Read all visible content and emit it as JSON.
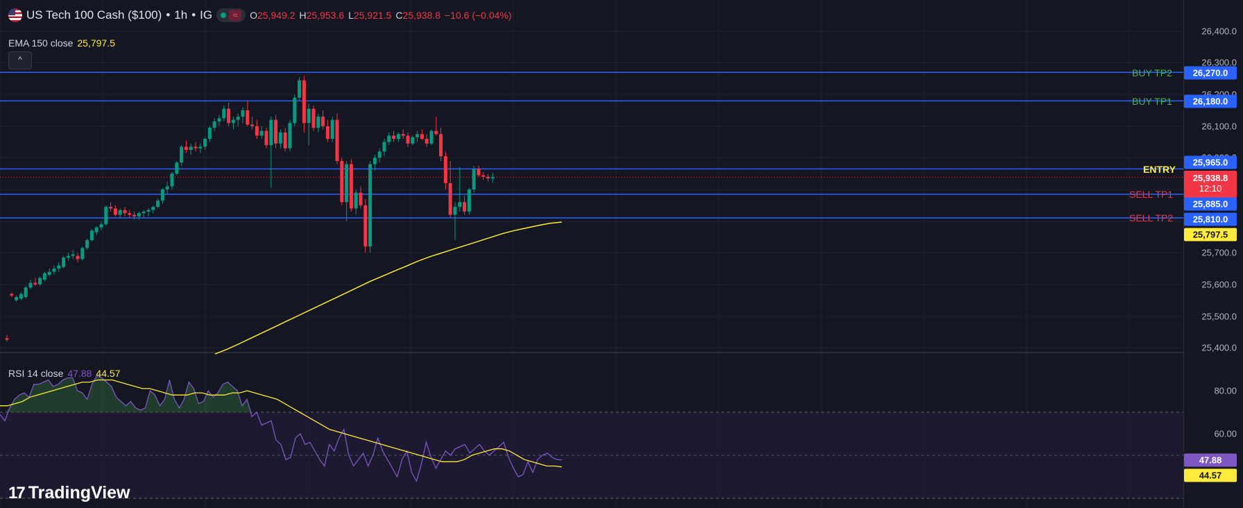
{
  "header": {
    "symbol": "US Tech 100 Cash ($100)",
    "separator1": "•",
    "interval": "1h",
    "separator2": "•",
    "broker": "IG",
    "wave_symbol": "≈",
    "o_label": "O",
    "o_value": "25,949.2",
    "h_label": "H",
    "h_value": "25,953.6",
    "l_label": "L",
    "l_value": "25,921.5",
    "c_label": "C",
    "c_value": "25,938.8",
    "change": "−10.6 (−0.04%)"
  },
  "ema_legend": {
    "label": "EMA 150 close",
    "value": "25,797.5"
  },
  "collapse_glyph": "^",
  "rsi_legend": {
    "label": "RSI 14 close",
    "value": "47.88",
    "ma_value": "44.57"
  },
  "price_axis": {
    "ticks": [
      "26,400.0",
      "26,300.0",
      "26,200.0",
      "26,100.0",
      "26,000.0",
      "25,700.0",
      "25,600.0",
      "25,500.0",
      "25,400.0"
    ]
  },
  "rsi_axis": {
    "ticks": [
      "80.00",
      "60.00"
    ]
  },
  "levels": [
    {
      "name": "BUY TP2",
      "price": "26,270.0",
      "value": 26270,
      "color": "#4caf50",
      "badge_color": "#2962ff"
    },
    {
      "name": "BUY TP1",
      "price": "26,180.0",
      "value": 26180,
      "color": "#4caf50",
      "badge_color": "#2962ff"
    },
    {
      "name": "ENTRY",
      "price": "25,965.0",
      "value": 25965,
      "color": "#ffeb3b",
      "badge_color": "#2962ff"
    },
    {
      "name": "SELL TP1",
      "price": "25,885.0",
      "value": 25885,
      "color": "#f23645",
      "badge_color": "#2962ff"
    },
    {
      "name": "SELL TP2",
      "price": "25,810.0",
      "value": 25810,
      "color": "#f23645",
      "badge_color": "#2962ff"
    }
  ],
  "current_price": {
    "price": "25,938.8",
    "countdown": "12:10",
    "color": "#f23645"
  },
  "ema_badge": {
    "value": "25,797.5",
    "color": "#ffeb3b"
  },
  "rsi_badges": {
    "rsi": "47.88",
    "rsi_color": "#7e57c2",
    "ma": "44.57",
    "ma_color": "#ffeb3b"
  },
  "brand": {
    "mark": "17",
    "name": "TradingView"
  },
  "colors": {
    "up": "#089981",
    "down": "#f23645",
    "ema": "#ffeb3b",
    "rsi": "#7e57c2",
    "level_line": "#2962ff"
  },
  "chart_data": {
    "type": "candlestick",
    "price_range": [
      25380,
      26450
    ],
    "candles": [
      [
        25430,
        25440,
        25420,
        25425
      ],
      [
        25570,
        25575,
        25560,
        25565
      ],
      [
        25550,
        25565,
        25545,
        25560
      ],
      [
        25555,
        25575,
        25550,
        25570
      ],
      [
        25560,
        25595,
        25555,
        25590
      ],
      [
        25590,
        25615,
        25585,
        25605
      ],
      [
        25605,
        25620,
        25595,
        25600
      ],
      [
        25600,
        25625,
        25595,
        25620
      ],
      [
        25615,
        25640,
        25610,
        25635
      ],
      [
        25630,
        25650,
        25625,
        25640
      ],
      [
        25640,
        25660,
        25630,
        25650
      ],
      [
        25650,
        25670,
        25640,
        25660
      ],
      [
        25655,
        25690,
        25650,
        25685
      ],
      [
        25685,
        25700,
        25675,
        25690
      ],
      [
        25690,
        25710,
        25680,
        25695
      ],
      [
        25690,
        25700,
        25670,
        25680
      ],
      [
        25680,
        25720,
        25675,
        25715
      ],
      [
        25715,
        25745,
        25710,
        25740
      ],
      [
        25740,
        25775,
        25735,
        25770
      ],
      [
        25765,
        25785,
        25755,
        25780
      ],
      [
        25780,
        25800,
        25770,
        25790
      ],
      [
        25790,
        25850,
        25785,
        25845
      ],
      [
        25845,
        25860,
        25830,
        25840
      ],
      [
        25840,
        25850,
        25815,
        25820
      ],
      [
        25820,
        25840,
        25810,
        25835
      ],
      [
        25835,
        25845,
        25815,
        25825
      ],
      [
        25825,
        25835,
        25810,
        25820
      ],
      [
        25820,
        25830,
        25805,
        25815
      ],
      [
        25815,
        25830,
        25805,
        25825
      ],
      [
        25825,
        25835,
        25810,
        25830
      ],
      [
        25830,
        25840,
        25815,
        25835
      ],
      [
        25835,
        25850,
        25825,
        25845
      ],
      [
        25845,
        25870,
        25840,
        25865
      ],
      [
        25865,
        25905,
        25855,
        25900
      ],
      [
        25900,
        25925,
        25885,
        25910
      ],
      [
        25910,
        25955,
        25900,
        25950
      ],
      [
        25950,
        25990,
        25945,
        25985
      ],
      [
        25985,
        26040,
        25975,
        26035
      ],
      [
        26035,
        26055,
        26015,
        26025
      ],
      [
        26025,
        26045,
        26010,
        26035
      ],
      [
        26035,
        26050,
        26020,
        26030
      ],
      [
        26030,
        26045,
        26015,
        26035
      ],
      [
        26035,
        26065,
        26025,
        26060
      ],
      [
        26060,
        26100,
        26050,
        26095
      ],
      [
        26095,
        26125,
        26085,
        26115
      ],
      [
        26115,
        26135,
        26100,
        26125
      ],
      [
        26125,
        26165,
        26115,
        26155
      ],
      [
        26155,
        26175,
        26100,
        26110
      ],
      [
        26110,
        26130,
        26090,
        26120
      ],
      [
        26120,
        26140,
        26100,
        26130
      ],
      [
        26130,
        26160,
        26110,
        26150
      ],
      [
        26150,
        26180,
        26100,
        26105
      ],
      [
        26105,
        26130,
        26090,
        26100
      ],
      [
        26100,
        26120,
        26060,
        26070
      ],
      [
        26070,
        26100,
        26060,
        26085
      ],
      [
        26085,
        26095,
        26030,
        26040
      ],
      [
        26040,
        26130,
        25905,
        26120
      ],
      [
        26120,
        26135,
        26030,
        26045
      ],
      [
        26045,
        26090,
        26030,
        26080
      ],
      [
        26080,
        26095,
        26020,
        26030
      ],
      [
        26030,
        26120,
        26020,
        26110
      ],
      [
        26110,
        26200,
        26100,
        26190
      ],
      [
        26190,
        26255,
        26180,
        26245
      ],
      [
        26245,
        26260,
        26080,
        26110
      ],
      [
        26110,
        26170,
        26040,
        26155
      ],
      [
        26155,
        26165,
        26085,
        26095
      ],
      [
        26095,
        26140,
        26080,
        26130
      ],
      [
        26130,
        26150,
        26090,
        26100
      ],
      [
        26100,
        26120,
        26050,
        26060
      ],
      [
        26060,
        26130,
        26050,
        26120
      ],
      [
        26120,
        26140,
        25980,
        25990
      ],
      [
        25990,
        26000,
        25850,
        25860
      ],
      [
        25860,
        25990,
        25800,
        25980
      ],
      [
        25980,
        25995,
        25830,
        25840
      ],
      [
        25840,
        25900,
        25820,
        25890
      ],
      [
        25890,
        25910,
        25840,
        25850
      ],
      [
        25850,
        25870,
        25700,
        25720
      ],
      [
        25720,
        25990,
        25700,
        25980
      ],
      [
        25980,
        26010,
        25960,
        26000
      ],
      [
        26000,
        26030,
        25985,
        26020
      ],
      [
        26020,
        26060,
        26005,
        26050
      ],
      [
        26050,
        26080,
        26040,
        26070
      ],
      [
        26070,
        26085,
        26050,
        26060
      ],
      [
        26060,
        26080,
        26050,
        26075
      ],
      [
        26075,
        26090,
        26060,
        26070
      ],
      [
        26070,
        26080,
        26035,
        26045
      ],
      [
        26045,
        26070,
        26040,
        26065
      ],
      [
        26065,
        26085,
        26050,
        26075
      ],
      [
        26075,
        26090,
        26055,
        26060
      ],
      [
        26060,
        26075,
        26035,
        26045
      ],
      [
        26045,
        26090,
        26040,
        26085
      ],
      [
        26085,
        26130,
        26070,
        26075
      ],
      [
        26075,
        26095,
        25990,
        26005
      ],
      [
        26005,
        26020,
        25900,
        25920
      ],
      [
        25920,
        25990,
        25810,
        25820
      ],
      [
        25820,
        25860,
        25740,
        25845
      ],
      [
        25845,
        25970,
        25830,
        25860
      ],
      [
        25860,
        25880,
        25820,
        25830
      ],
      [
        25830,
        25905,
        25820,
        25900
      ],
      [
        25900,
        25975,
        25890,
        25965
      ],
      [
        25965,
        25975,
        25940,
        25945
      ],
      [
        25945,
        25955,
        25930,
        25940
      ],
      [
        25940,
        25950,
        25925,
        25935
      ],
      [
        25935,
        25953,
        25921,
        25939
      ]
    ],
    "ema": [
      25380,
      25395,
      25412,
      25430,
      25448,
      25466,
      25484,
      25502,
      25520,
      25538,
      25556,
      25574,
      25592,
      25610,
      25626,
      25642,
      25658,
      25674,
      25688,
      25700,
      25712,
      25724,
      25736,
      25748,
      25760,
      25770,
      25778,
      25786,
      25793,
      25797
    ],
    "rsi_range": [
      30,
      95
    ],
    "rsi": [
      69,
      66,
      72,
      76,
      78,
      79,
      77,
      83,
      83,
      84,
      85,
      82,
      83,
      85,
      86,
      86,
      80,
      79,
      76,
      83,
      87,
      86,
      84,
      82,
      77,
      75,
      73,
      75,
      72,
      71,
      72,
      80,
      78,
      73,
      76,
      85,
      76,
      72,
      76,
      84,
      81,
      74,
      75,
      80,
      77,
      79,
      83,
      84,
      82,
      80,
      73,
      76,
      68,
      70,
      64,
      65,
      66,
      57,
      55,
      48,
      49,
      58,
      60,
      55,
      56,
      52,
      48,
      45,
      55,
      52,
      58,
      62,
      50,
      45,
      48,
      51,
      45,
      50,
      58,
      52,
      48,
      44,
      40,
      48,
      52,
      42,
      38,
      46,
      56,
      49,
      44,
      48,
      52,
      50,
      53,
      54,
      55,
      51,
      53,
      55,
      52,
      50,
      52,
      54,
      56,
      49,
      44,
      40,
      41,
      47,
      42,
      48,
      50,
      51,
      49,
      48,
      47.88
    ],
    "rsi_ma": [
      73,
      73,
      74,
      75,
      77,
      78,
      79,
      80,
      81,
      82,
      83,
      84,
      84,
      85,
      85,
      85,
      84,
      83,
      82,
      81,
      81,
      80,
      79,
      78,
      78,
      78,
      79,
      79,
      78,
      78,
      78,
      79,
      79,
      80,
      79,
      78,
      77,
      76,
      74,
      72,
      70,
      68,
      66,
      64,
      62,
      61,
      60,
      59,
      58,
      57,
      56,
      55,
      54,
      53,
      52,
      51,
      50,
      49,
      48,
      47,
      47,
      47,
      48,
      50,
      51,
      52,
      53,
      53,
      52,
      50,
      48,
      47,
      46,
      45,
      45,
      44.57
    ]
  }
}
